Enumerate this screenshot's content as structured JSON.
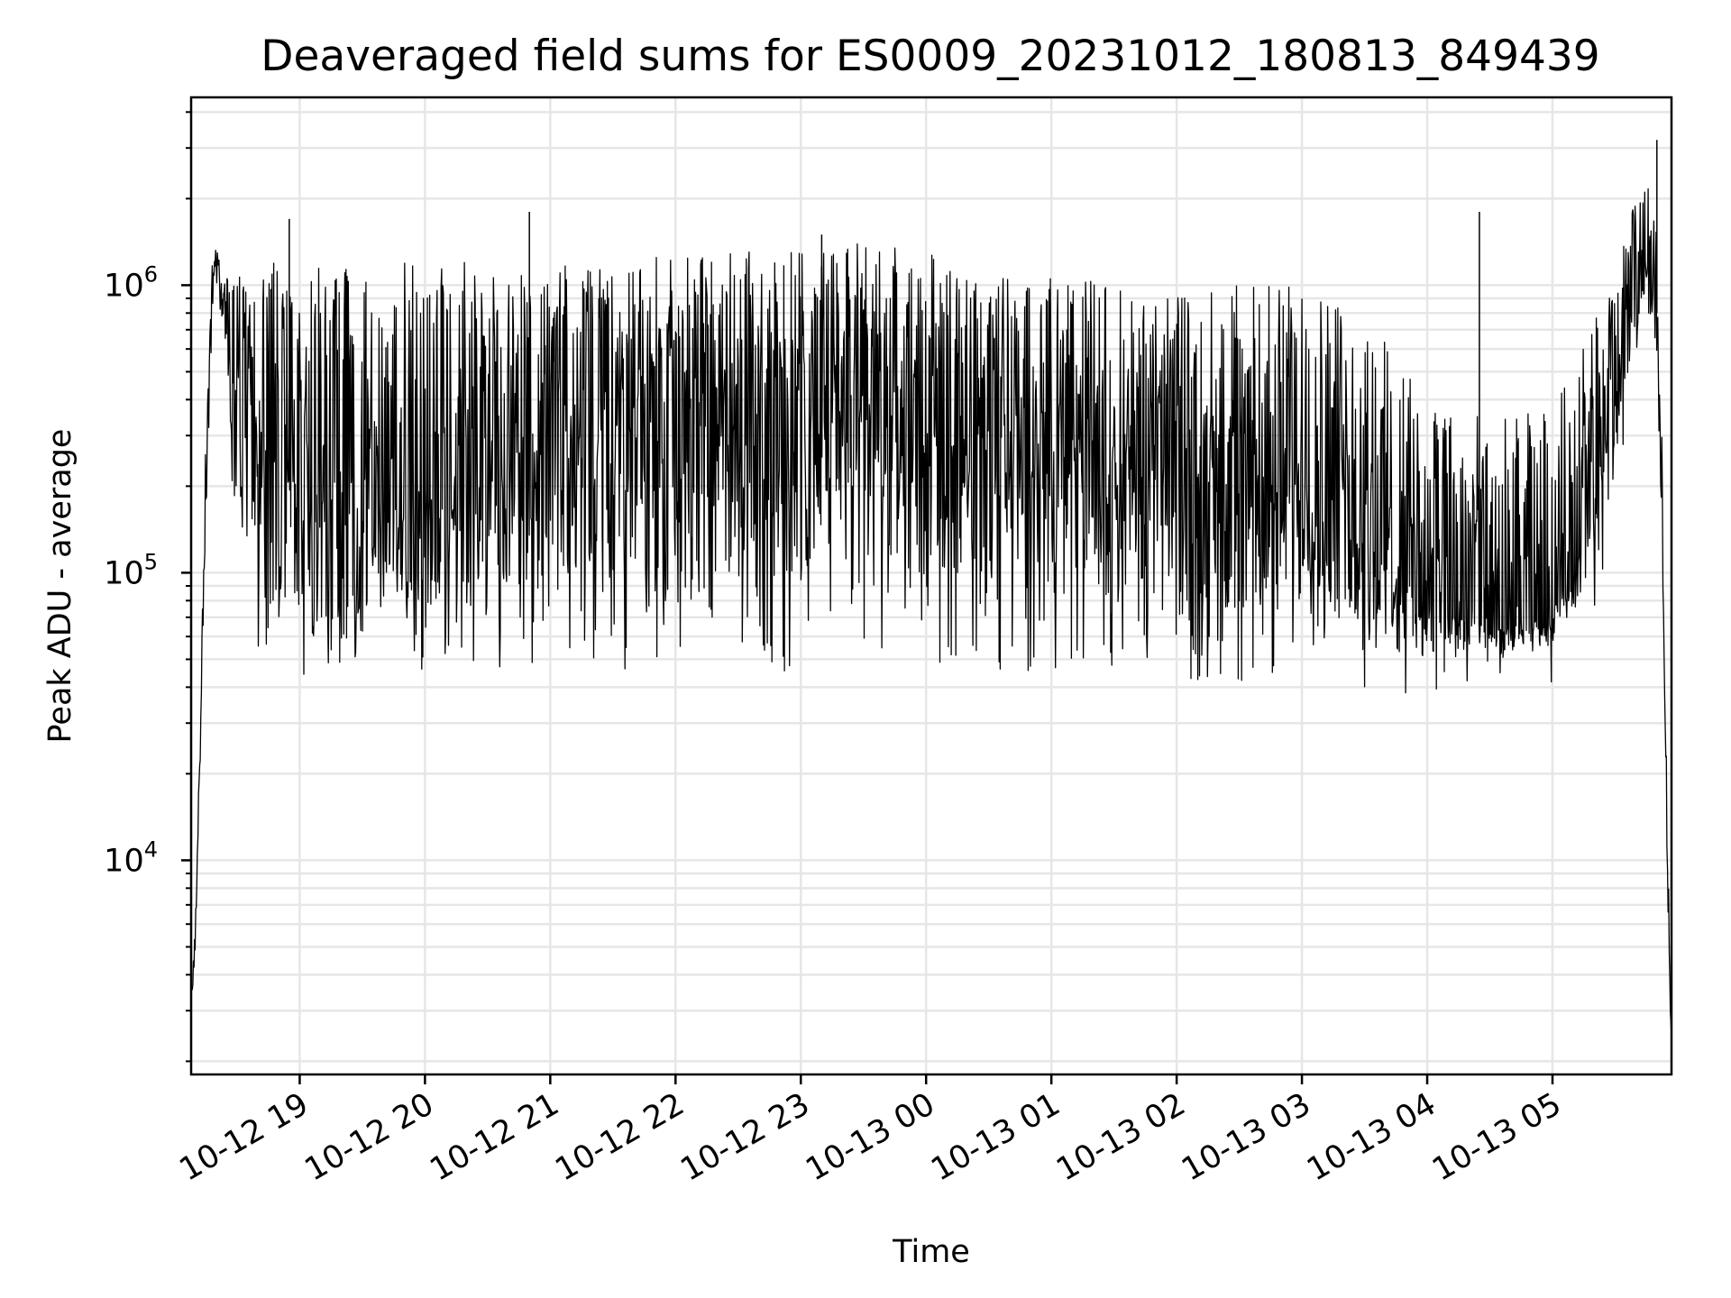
{
  "chart_data": {
    "type": "line",
    "title": "Deaveraged field sums for ES0009_20231012_180813_849439",
    "xlabel": "Time",
    "ylabel": "Peak ADU - average",
    "yscale": "log",
    "ylim": [
      1800,
      4500000
    ],
    "xlim": [
      "2023-10-12 18:08",
      "2023-10-13 05:57"
    ],
    "grid": true,
    "line_color": "#000000",
    "grid_color": "#e6e6e6",
    "y_ticks": [
      {
        "base": "10",
        "exp": "4",
        "value": 10000
      },
      {
        "base": "10",
        "exp": "5",
        "value": 100000
      },
      {
        "base": "10",
        "exp": "6",
        "value": 1000000
      }
    ],
    "x_ticks": [
      {
        "label": "10-12 19",
        "time": "2023-10-12 19:00"
      },
      {
        "label": "10-12 20",
        "time": "2023-10-12 20:00"
      },
      {
        "label": "10-12 21",
        "time": "2023-10-12 21:00"
      },
      {
        "label": "10-12 22",
        "time": "2023-10-12 22:00"
      },
      {
        "label": "10-12 23",
        "time": "2023-10-12 23:00"
      },
      {
        "label": "10-13 00",
        "time": "2023-10-13 00:00"
      },
      {
        "label": "10-13 01",
        "time": "2023-10-13 01:00"
      },
      {
        "label": "10-13 02",
        "time": "2023-10-13 02:00"
      },
      {
        "label": "10-13 03",
        "time": "2023-10-13 03:00"
      },
      {
        "label": "10-13 04",
        "time": "2023-10-13 04:00"
      },
      {
        "label": "10-13 05",
        "time": "2023-10-13 05:00"
      }
    ],
    "series": [
      {
        "x": [
          "2023-10-12 18:08",
          "2023-10-12 18:10",
          "2023-10-12 18:12",
          "2023-10-12 18:15",
          "2023-10-12 18:18",
          "2023-10-12 18:20",
          "2023-10-12 18:22",
          "2023-10-12 18:25",
          "2023-10-12 18:28",
          "2023-10-12 18:30",
          "2023-10-12 18:33",
          "2023-10-12 18:36",
          "2023-10-12 18:40",
          "2023-10-12 18:45",
          "2023-10-12 18:50",
          "2023-10-12 19:00",
          "2023-10-12 19:15",
          "2023-10-12 19:30",
          "2023-10-12 19:45",
          "2023-10-12 20:00",
          "2023-10-12 20:15",
          "2023-10-12 20:30",
          "2023-10-12 20:45",
          "2023-10-12 21:00",
          "2023-10-12 21:30",
          "2023-10-12 22:00",
          "2023-10-12 22:30",
          "2023-10-12 23:00",
          "2023-10-12 23:30",
          "2023-10-13 00:00",
          "2023-10-13 00:30",
          "2023-10-13 01:00",
          "2023-10-13 01:30",
          "2023-10-13 02:00",
          "2023-10-13 02:30",
          "2023-10-13 03:00",
          "2023-10-13 03:15",
          "2023-10-13 03:30",
          "2023-10-13 03:45",
          "2023-10-13 04:00",
          "2023-10-13 04:15",
          "2023-10-13 04:30",
          "2023-10-13 04:45",
          "2023-10-13 05:00",
          "2023-10-13 05:10",
          "2023-10-13 05:20",
          "2023-10-13 05:30",
          "2023-10-13 05:35",
          "2023-10-13 05:40",
          "2023-10-13 05:45",
          "2023-10-13 05:50",
          "2023-10-13 05:53",
          "2023-10-13 05:55",
          "2023-10-13 05:57"
        ],
        "values": [
          3000,
          5000,
          20000,
          200000,
          900000,
          1300000,
          1000000,
          700000,
          600000,
          500000,
          450000,
          400000,
          350000,
          300000,
          250000,
          200000,
          180000,
          170000,
          180000,
          200000,
          220000,
          250000,
          270000,
          300000,
          320000,
          350000,
          380000,
          400000,
          380000,
          350000,
          300000,
          280000,
          250000,
          240000,
          230000,
          220000,
          200000,
          150000,
          100000,
          80000,
          70000,
          65000,
          65000,
          75000,
          100000,
          200000,
          400000,
          600000,
          1000000,
          1300000,
          800000,
          100000,
          10000,
          2000
        ],
        "low_envelope": [
          3000,
          5000,
          20000,
          150000,
          700000,
          1000000,
          800000,
          400000,
          200000,
          150000,
          100000,
          80000,
          70000,
          60000,
          55000,
          55000,
          55000,
          55000,
          60000,
          60000,
          60000,
          60000,
          60000,
          60000,
          60000,
          60000,
          60000,
          60000,
          60000,
          60000,
          60000,
          60000,
          60000,
          55000,
          55000,
          60000,
          55000,
          50000,
          50000,
          50000,
          50000,
          50000,
          50000,
          55000,
          70000,
          100000,
          200000,
          400000,
          700000,
          900000,
          500000,
          80000,
          8000,
          2000
        ],
        "high_envelope": [
          3500,
          6000,
          25000,
          300000,
          1200000,
          1400000,
          1200000,
          1100000,
          1100000,
          1100000,
          1100000,
          1100000,
          1100000,
          1200000,
          1200000,
          1200000,
          1200000,
          1200000,
          1200000,
          1200000,
          1200000,
          1200000,
          1200000,
          1200000,
          1200000,
          1300000,
          1300000,
          1400000,
          1400000,
          1300000,
          1100000,
          1100000,
          1000000,
          1000000,
          1000000,
          1000000,
          900000,
          800000,
          600000,
          400000,
          350000,
          350000,
          350000,
          400000,
          500000,
          800000,
          1200000,
          1500000,
          2000000,
          2500000,
          1500000,
          200000,
          15000,
          2500
        ],
        "notable_peaks": [
          {
            "x": "2023-10-12 18:55",
            "y": 1700000
          },
          {
            "x": "2023-10-12 20:50",
            "y": 1800000
          },
          {
            "x": "2023-10-12 23:10",
            "y": 1500000
          },
          {
            "x": "2023-10-13 04:25",
            "y": 1800000
          },
          {
            "x": "2023-10-13 05:50",
            "y": 3200000
          }
        ]
      }
    ]
  }
}
